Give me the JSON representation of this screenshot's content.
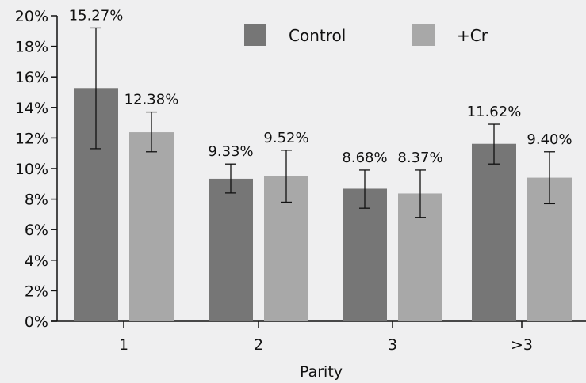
{
  "chart_data": {
    "type": "bar",
    "title": "",
    "xlabel": "Parity",
    "ylabel": "",
    "categories": [
      "1",
      "2",
      "3",
      ">3"
    ],
    "ylim": [
      0,
      20
    ],
    "yticks": [
      "0%",
      "2%",
      "4%",
      "6%",
      "8%",
      "10%",
      "12%",
      "14%",
      "16%",
      "18%",
      "20%"
    ],
    "legend_position": "top-right",
    "grid": false,
    "series": [
      {
        "name": "Control",
        "color": "#767676",
        "values": [
          15.27,
          9.33,
          8.68,
          11.62
        ],
        "labels": [
          "15.27%",
          "9.33%",
          "8.68%",
          "11.62%"
        ],
        "error_low": [
          11.3,
          8.4,
          7.4,
          10.3
        ],
        "error_high": [
          19.2,
          10.3,
          9.9,
          12.9
        ]
      },
      {
        "name": "+Cr",
        "color": "#a8a8a8",
        "values": [
          12.38,
          9.52,
          8.37,
          9.4
        ],
        "labels": [
          "12.38%",
          "9.52%",
          "8.37%",
          "9.40%"
        ],
        "error_low": [
          11.1,
          7.8,
          6.8,
          7.7
        ],
        "error_high": [
          13.7,
          11.2,
          9.9,
          11.1
        ]
      }
    ]
  }
}
